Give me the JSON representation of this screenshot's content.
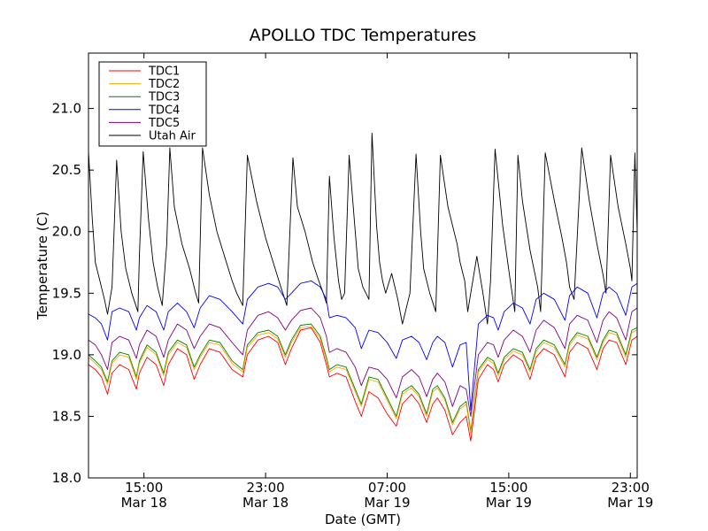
{
  "chart_data": {
    "type": "line",
    "title": "APOLLO TDC Temperatures",
    "xlabel": "Date (GMT)",
    "ylabel": "Temperature (C)",
    "xlim": [
      11.35,
      47.45
    ],
    "ylim": [
      18.0,
      21.45
    ],
    "x_unit": "hours since Mar 18 00:00 GMT",
    "x_ticks": [
      {
        "value": 15,
        "time": "15:00",
        "date": "Mar 18"
      },
      {
        "value": 23,
        "time": "23:00",
        "date": "Mar 18"
      },
      {
        "value": 31,
        "time": "07:00",
        "date": "Mar 19"
      },
      {
        "value": 39,
        "time": "15:00",
        "date": "Mar 19"
      },
      {
        "value": 47,
        "time": "23:00",
        "date": "Mar 19"
      }
    ],
    "y_ticks": [
      "18.0",
      "18.5",
      "19.0",
      "19.5",
      "20.0",
      "20.5",
      "21.0"
    ],
    "legend_position": "top-left",
    "series": [
      {
        "name": "Utah Air",
        "color": "#000000",
        "x": [
          11.35,
          11.6,
          11.8,
          12.1,
          12.4,
          12.6,
          12.9,
          13.2,
          13.5,
          13.8,
          14.2,
          14.6,
          14.7,
          14.95,
          15.3,
          15.6,
          15.9,
          16.2,
          16.5,
          16.7,
          17.0,
          17.5,
          18.0,
          18.4,
          18.6,
          18.85,
          19.3,
          19.8,
          20.3,
          20.8,
          21.1,
          21.5,
          21.8,
          22.4,
          23.0,
          23.5,
          24.0,
          24.4,
          24.8,
          25.1,
          25.6,
          26.1,
          26.5,
          26.8,
          27.0,
          27.2,
          27.5,
          27.8,
          28.0,
          28.2,
          28.5,
          28.9,
          29.1,
          29.4,
          29.8,
          30.0,
          30.3,
          30.5,
          30.7,
          30.9,
          31.3,
          31.7,
          32.0,
          32.5,
          32.9,
          33.2,
          33.4,
          33.8,
          34.2,
          34.5,
          35.0,
          35.6,
          35.8,
          36.1,
          36.3,
          36.5,
          36.9,
          37.3,
          37.6,
          37.8,
          38.1,
          38.6,
          39.1,
          39.4,
          39.6,
          39.9,
          40.4,
          40.9,
          41.1,
          41.4,
          42.0,
          42.5,
          42.8,
          43.0,
          43.3,
          43.8,
          44.3,
          44.8,
          45.2,
          45.4,
          45.7,
          46.2,
          46.7,
          47.0,
          47.1,
          47.3,
          47.45
        ],
        "values": [
          20.65,
          20.1,
          19.75,
          19.6,
          19.45,
          19.33,
          19.55,
          20.58,
          20.0,
          19.7,
          19.5,
          19.35,
          19.8,
          20.65,
          20.1,
          19.75,
          19.55,
          19.4,
          19.9,
          20.68,
          20.2,
          19.9,
          19.7,
          19.5,
          19.42,
          20.68,
          20.3,
          20.0,
          19.8,
          19.6,
          19.5,
          19.4,
          20.62,
          20.25,
          19.95,
          19.75,
          19.55,
          19.4,
          20.6,
          20.2,
          20.0,
          19.75,
          19.6,
          19.5,
          19.42,
          20.45,
          19.95,
          19.6,
          19.45,
          19.5,
          20.62,
          20.0,
          19.7,
          19.55,
          19.45,
          20.8,
          20.05,
          19.75,
          19.6,
          19.5,
          19.66,
          19.45,
          19.25,
          19.5,
          20.63,
          20.0,
          19.7,
          19.5,
          19.35,
          20.62,
          20.2,
          19.9,
          19.75,
          19.6,
          19.35,
          19.5,
          19.8,
          19.5,
          19.25,
          19.6,
          20.67,
          20.05,
          19.6,
          19.35,
          20.62,
          20.25,
          19.85,
          19.55,
          19.35,
          20.64,
          20.25,
          19.95,
          19.75,
          19.55,
          19.45,
          20.68,
          20.25,
          19.9,
          19.65,
          19.5,
          20.62,
          20.2,
          19.9,
          19.7,
          19.6,
          20.64,
          20.0
        ]
      },
      {
        "name": "TDC4",
        "color": "#0000ff",
        "x": [
          11.35,
          11.8,
          12.2,
          12.6,
          12.9,
          13.4,
          14.0,
          14.5,
          14.7,
          15.2,
          15.8,
          16.3,
          16.6,
          17.2,
          17.8,
          18.3,
          18.7,
          19.3,
          20.0,
          20.8,
          21.5,
          21.8,
          22.5,
          23.2,
          23.8,
          24.3,
          24.7,
          25.3,
          26.0,
          26.6,
          27.0,
          27.2,
          27.7,
          28.3,
          28.9,
          29.3,
          29.8,
          30.4,
          31.0,
          31.6,
          32.0,
          32.6,
          33.1,
          33.6,
          34.0,
          34.3,
          34.8,
          35.3,
          35.8,
          36.2,
          36.5,
          37.0,
          37.6,
          38.0,
          38.3,
          38.7,
          39.3,
          39.9,
          40.4,
          40.8,
          41.3,
          42.0,
          42.7,
          43.0,
          43.5,
          44.2,
          44.8,
          45.2,
          45.6,
          46.1,
          46.7,
          47.1,
          47.45
        ],
        "values": [
          19.33,
          19.3,
          19.25,
          19.12,
          19.35,
          19.38,
          19.35,
          19.2,
          19.3,
          19.4,
          19.35,
          19.2,
          19.35,
          19.42,
          19.35,
          19.22,
          19.38,
          19.48,
          19.45,
          19.35,
          19.25,
          19.45,
          19.55,
          19.58,
          19.55,
          19.45,
          19.5,
          19.58,
          19.6,
          19.55,
          19.45,
          19.3,
          19.32,
          19.3,
          19.22,
          19.05,
          19.2,
          19.18,
          19.1,
          18.97,
          19.12,
          19.15,
          19.1,
          18.96,
          19.1,
          19.15,
          19.1,
          18.9,
          19.08,
          19.1,
          18.55,
          19.25,
          19.32,
          19.3,
          19.2,
          19.35,
          19.42,
          19.38,
          19.25,
          19.45,
          19.5,
          19.45,
          19.28,
          19.48,
          19.55,
          19.5,
          19.3,
          19.5,
          19.55,
          19.5,
          19.32,
          19.55,
          19.58
        ]
      },
      {
        "name": "TDC5",
        "color": "#800080",
        "x": [
          11.35,
          11.8,
          12.2,
          12.6,
          12.9,
          13.4,
          14.0,
          14.5,
          14.7,
          15.2,
          15.8,
          16.3,
          16.6,
          17.2,
          17.8,
          18.3,
          18.7,
          19.3,
          20.0,
          20.8,
          21.5,
          21.8,
          22.5,
          23.2,
          23.8,
          24.3,
          24.7,
          25.3,
          26.0,
          26.6,
          27.0,
          27.2,
          27.7,
          28.3,
          28.9,
          29.3,
          29.8,
          30.4,
          31.0,
          31.6,
          32.0,
          32.6,
          33.1,
          33.6,
          34.0,
          34.3,
          34.8,
          35.3,
          35.8,
          36.2,
          36.5,
          37.0,
          37.6,
          38.0,
          38.3,
          38.7,
          39.3,
          39.9,
          40.4,
          40.8,
          41.3,
          42.0,
          42.7,
          43.0,
          43.5,
          44.2,
          44.8,
          45.2,
          45.6,
          46.1,
          46.7,
          47.1,
          47.45
        ],
        "values": [
          19.12,
          19.08,
          19.0,
          18.88,
          19.1,
          19.15,
          19.12,
          18.97,
          19.08,
          19.2,
          19.15,
          18.98,
          19.12,
          19.25,
          19.2,
          19.05,
          19.15,
          19.25,
          19.22,
          19.1,
          19.0,
          19.2,
          19.32,
          19.35,
          19.3,
          19.2,
          19.28,
          19.36,
          19.38,
          19.3,
          19.15,
          19.02,
          19.05,
          19.02,
          18.9,
          18.75,
          18.9,
          18.88,
          18.8,
          18.65,
          18.82,
          18.88,
          18.82,
          18.66,
          18.8,
          18.85,
          18.78,
          18.58,
          18.75,
          18.72,
          18.5,
          19.0,
          19.1,
          19.08,
          18.98,
          19.12,
          19.2,
          19.15,
          19.02,
          19.2,
          19.28,
          19.22,
          19.05,
          19.25,
          19.32,
          19.28,
          19.1,
          19.28,
          19.35,
          19.3,
          19.12,
          19.35,
          19.38
        ]
      },
      {
        "name": "TDC3",
        "color": "#008000",
        "x": [
          11.35,
          11.8,
          12.2,
          12.6,
          12.9,
          13.4,
          14.0,
          14.5,
          14.7,
          15.2,
          15.8,
          16.3,
          16.6,
          17.2,
          17.8,
          18.3,
          18.7,
          19.3,
          20.0,
          20.8,
          21.5,
          21.8,
          22.5,
          23.2,
          23.8,
          24.3,
          24.7,
          25.3,
          26.0,
          26.6,
          27.0,
          27.2,
          27.7,
          28.3,
          28.9,
          29.3,
          29.8,
          30.4,
          31.0,
          31.6,
          32.0,
          32.6,
          33.1,
          33.6,
          34.0,
          34.3,
          34.8,
          35.3,
          35.8,
          36.2,
          36.5,
          37.0,
          37.6,
          38.0,
          38.3,
          38.7,
          39.3,
          39.9,
          40.4,
          40.8,
          41.3,
          42.0,
          42.7,
          43.0,
          43.5,
          44.2,
          44.8,
          45.2,
          45.6,
          46.1,
          46.7,
          47.1,
          47.45
        ],
        "values": [
          19.0,
          18.95,
          18.9,
          18.78,
          18.95,
          19.02,
          19.0,
          18.82,
          18.95,
          19.08,
          19.02,
          18.85,
          19.02,
          19.12,
          19.08,
          18.9,
          19.0,
          19.12,
          19.1,
          18.95,
          18.88,
          19.08,
          19.18,
          19.2,
          19.15,
          19.0,
          19.12,
          19.24,
          19.25,
          19.15,
          18.98,
          18.88,
          18.92,
          18.9,
          18.72,
          18.6,
          18.82,
          18.8,
          18.65,
          18.5,
          18.7,
          18.75,
          18.68,
          18.52,
          18.72,
          18.75,
          18.65,
          18.45,
          18.58,
          18.62,
          18.38,
          18.88,
          18.98,
          18.95,
          18.85,
          18.98,
          19.05,
          19.02,
          18.88,
          19.05,
          19.12,
          19.08,
          18.92,
          19.1,
          19.18,
          19.15,
          18.98,
          19.12,
          19.2,
          19.18,
          19.0,
          19.2,
          19.22
        ]
      },
      {
        "name": "TDC2",
        "color": "#ffa500",
        "x": [
          11.35,
          11.8,
          12.2,
          12.6,
          12.9,
          13.4,
          14.0,
          14.5,
          14.7,
          15.2,
          15.8,
          16.3,
          16.6,
          17.2,
          17.8,
          18.3,
          18.7,
          19.3,
          20.0,
          20.8,
          21.5,
          21.8,
          22.5,
          23.2,
          23.8,
          24.3,
          24.7,
          25.3,
          26.0,
          26.6,
          27.0,
          27.2,
          27.7,
          28.3,
          28.9,
          29.3,
          29.8,
          30.4,
          31.0,
          31.6,
          32.0,
          32.6,
          33.1,
          33.6,
          34.0,
          34.3,
          34.8,
          35.3,
          35.8,
          36.2,
          36.5,
          37.0,
          37.6,
          38.0,
          38.3,
          38.7,
          39.3,
          39.9,
          40.4,
          40.8,
          41.3,
          42.0,
          42.7,
          43.0,
          43.5,
          44.2,
          44.8,
          45.2,
          45.6,
          46.1,
          46.7,
          47.1,
          47.45
        ],
        "values": [
          18.98,
          18.93,
          18.88,
          18.76,
          18.93,
          19.0,
          18.98,
          18.8,
          18.93,
          19.06,
          19.0,
          18.83,
          19.0,
          19.1,
          19.06,
          18.88,
          18.98,
          19.1,
          19.08,
          18.93,
          18.86,
          19.06,
          19.16,
          19.18,
          19.13,
          18.98,
          19.1,
          19.22,
          19.23,
          19.13,
          18.96,
          18.86,
          18.9,
          18.88,
          18.7,
          18.58,
          18.8,
          18.78,
          18.63,
          18.48,
          18.68,
          18.73,
          18.66,
          18.5,
          18.7,
          18.73,
          18.63,
          18.43,
          18.56,
          18.6,
          18.36,
          18.86,
          18.96,
          18.93,
          18.83,
          18.96,
          19.03,
          19.0,
          18.86,
          19.03,
          19.1,
          19.06,
          18.9,
          19.08,
          19.16,
          19.13,
          18.96,
          19.1,
          19.18,
          19.16,
          18.98,
          19.18,
          19.2
        ]
      },
      {
        "name": "TDC1",
        "color": "#ff0000",
        "x": [
          11.35,
          11.8,
          12.2,
          12.6,
          12.9,
          13.4,
          14.0,
          14.5,
          14.7,
          15.2,
          15.8,
          16.3,
          16.6,
          17.2,
          17.8,
          18.3,
          18.7,
          19.3,
          20.0,
          20.8,
          21.5,
          21.8,
          22.5,
          23.2,
          23.8,
          24.3,
          24.7,
          25.3,
          26.0,
          26.6,
          27.0,
          27.2,
          27.7,
          28.3,
          28.9,
          29.3,
          29.8,
          30.4,
          31.0,
          31.6,
          32.0,
          32.6,
          33.1,
          33.6,
          34.0,
          34.3,
          34.8,
          35.3,
          35.8,
          36.2,
          36.5,
          37.0,
          37.6,
          38.0,
          38.3,
          38.7,
          39.3,
          39.9,
          40.4,
          40.8,
          41.3,
          42.0,
          42.7,
          43.0,
          43.5,
          44.2,
          44.8,
          45.2,
          45.6,
          46.1,
          46.7,
          47.1,
          47.45
        ],
        "values": [
          18.92,
          18.88,
          18.82,
          18.68,
          18.85,
          18.92,
          18.88,
          18.72,
          18.85,
          18.98,
          18.92,
          18.75,
          18.92,
          19.05,
          19.0,
          18.8,
          18.92,
          19.05,
          19.02,
          18.88,
          18.82,
          19.0,
          19.12,
          19.15,
          19.1,
          18.92,
          19.05,
          19.2,
          19.22,
          19.1,
          18.92,
          18.82,
          18.85,
          18.82,
          18.62,
          18.5,
          18.7,
          18.65,
          18.52,
          18.42,
          18.6,
          18.68,
          18.6,
          18.45,
          18.6,
          18.65,
          18.55,
          18.35,
          18.45,
          18.5,
          18.3,
          18.8,
          18.92,
          18.88,
          18.78,
          18.92,
          19.0,
          18.95,
          18.8,
          18.98,
          19.05,
          19.0,
          18.82,
          19.02,
          19.1,
          19.05,
          18.88,
          19.05,
          19.12,
          19.1,
          18.92,
          19.12,
          19.15
        ]
      }
    ],
    "legend": [
      {
        "name": "TDC1",
        "color": "#ff0000"
      },
      {
        "name": "TDC2",
        "color": "#ffa500"
      },
      {
        "name": "TDC3",
        "color": "#008000"
      },
      {
        "name": "TDC4",
        "color": "#0000ff"
      },
      {
        "name": "TDC5",
        "color": "#800080"
      },
      {
        "name": "Utah Air",
        "color": "#000000"
      }
    ]
  }
}
